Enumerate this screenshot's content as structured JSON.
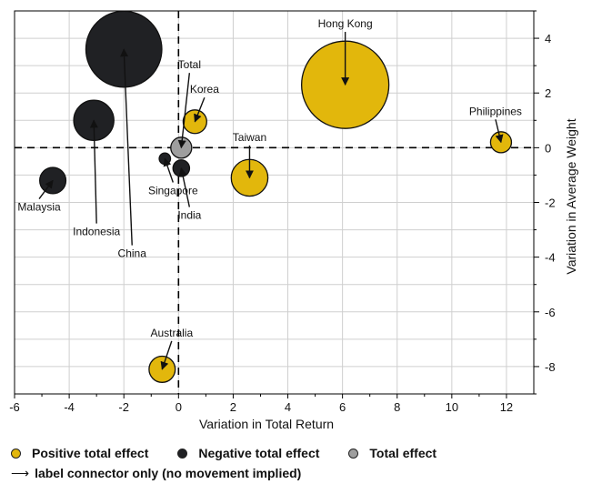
{
  "chart_data": {
    "type": "bubble",
    "xlabel": "Variation in Total Return",
    "ylabel": "Variation in Average Weight",
    "xlim": [
      -6,
      13
    ],
    "ylim": [
      -9,
      5
    ],
    "xticks": [
      -6,
      -4,
      -2,
      0,
      2,
      4,
      6,
      8,
      10,
      12
    ],
    "yticks": [
      -8,
      -6,
      -4,
      -2,
      0,
      2,
      4
    ],
    "grid": true,
    "points": [
      {
        "label": "Hong Kong",
        "x": 6.1,
        "y": 2.3,
        "size": 1.0,
        "category": "positive",
        "label_at": [
          6.1,
          4.4
        ]
      },
      {
        "label": "China",
        "x": -2.0,
        "y": 3.6,
        "size": 0.87,
        "category": "negative",
        "label_at": [
          -1.7,
          -4.0
        ]
      },
      {
        "label": "Indonesia",
        "x": -3.1,
        "y": 1.0,
        "size": 0.46,
        "category": "negative",
        "label_at": [
          -3.0,
          -3.2
        ]
      },
      {
        "label": "Taiwan",
        "x": 2.6,
        "y": -1.1,
        "size": 0.42,
        "category": "positive",
        "label_at": [
          2.6,
          0.25
        ]
      },
      {
        "label": "Australia",
        "x": -0.6,
        "y": -8.1,
        "size": 0.3,
        "category": "positive",
        "label_at": [
          -0.25,
          -6.9
        ]
      },
      {
        "label": "Malaysia",
        "x": -4.6,
        "y": -1.2,
        "size": 0.3,
        "category": "negative",
        "label_at": [
          -5.1,
          -2.3
        ]
      },
      {
        "label": "Korea",
        "x": 0.6,
        "y": 0.95,
        "size": 0.27,
        "category": "positive",
        "label_at": [
          0.95,
          2.0
        ]
      },
      {
        "label": "Total",
        "x": 0.1,
        "y": 0.0,
        "size": 0.24,
        "category": "total",
        "label_at": [
          0.4,
          2.9
        ]
      },
      {
        "label": "Philippines",
        "x": 11.8,
        "y": 0.2,
        "size": 0.24,
        "category": "positive",
        "label_at": [
          11.6,
          1.2
        ]
      },
      {
        "label": "India",
        "x": 0.1,
        "y": -0.75,
        "size": 0.19,
        "category": "negative",
        "label_at": [
          0.4,
          -2.6
        ]
      },
      {
        "label": "Singapore",
        "x": -0.5,
        "y": -0.4,
        "size": 0.13,
        "category": "negative",
        "label_at": [
          -0.2,
          -1.7
        ]
      }
    ]
  },
  "colors": {
    "positive": "#e2b70c",
    "negative": "#202124",
    "total": "#9e9e9e",
    "grid": "#cfcfcf",
    "axis": "#000000"
  },
  "legend": {
    "positive_label": "Positive total effect",
    "negative_label": "Negative total effect",
    "total_label": "Total effect",
    "note_arrow": "⟶",
    "note_text": "label connector only (no movement implied)"
  }
}
